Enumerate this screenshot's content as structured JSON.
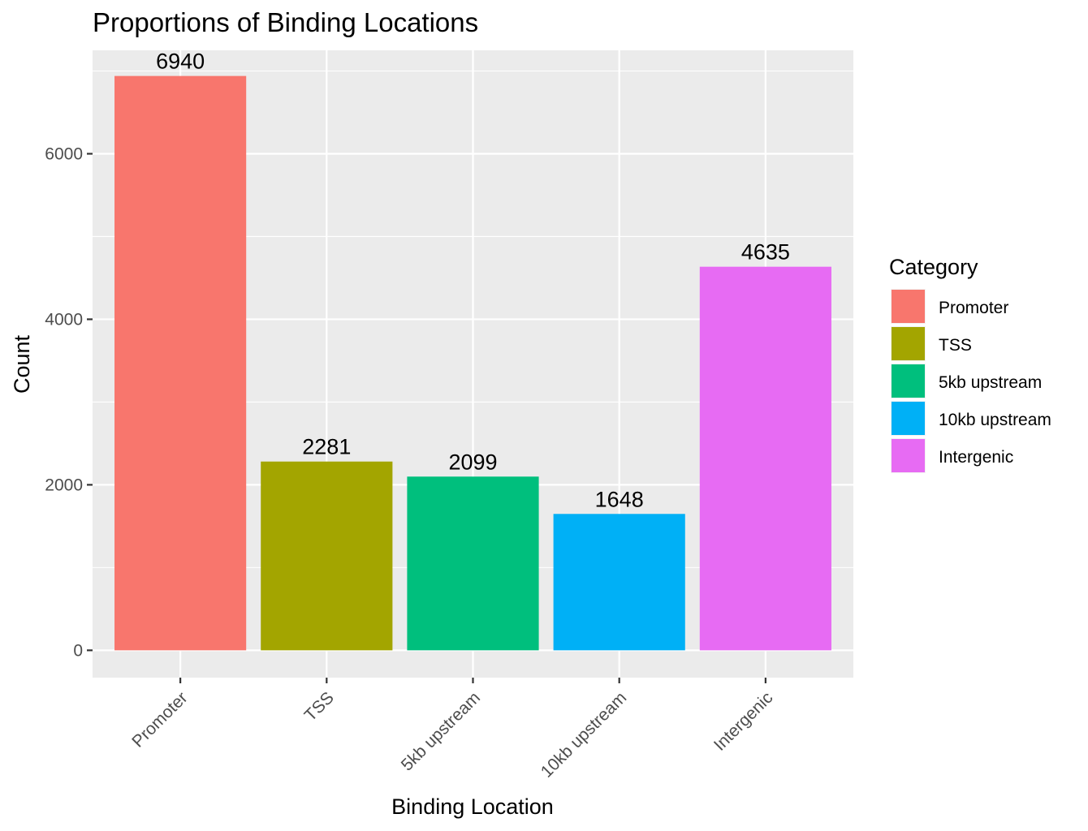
{
  "chart_data": {
    "type": "bar",
    "title": "Proportions of Binding Locations",
    "xlabel": "Binding Location",
    "ylabel": "Count",
    "categories": [
      "Promoter",
      "TSS",
      "5kb upstream",
      "10kb upstream",
      "Intergenic"
    ],
    "values": [
      6940,
      2281,
      2099,
      1648,
      4635
    ],
    "colors": [
      "#F8766D",
      "#A3A500",
      "#00BF7D",
      "#00B0F6",
      "#E76BF3"
    ],
    "ylim": [
      -330,
      7250
    ],
    "yticks": [
      0,
      2000,
      4000,
      6000
    ],
    "ytick_labels": [
      "0",
      "2000",
      "4000",
      "6000"
    ],
    "grid": true,
    "data_labels": [
      "6940",
      "2281",
      "2099",
      "1648",
      "4635"
    ],
    "legend": {
      "title": "Category",
      "position": "right",
      "entries": [
        "Promoter",
        "TSS",
        "5kb upstream",
        "10kb upstream",
        "Intergenic"
      ]
    }
  }
}
